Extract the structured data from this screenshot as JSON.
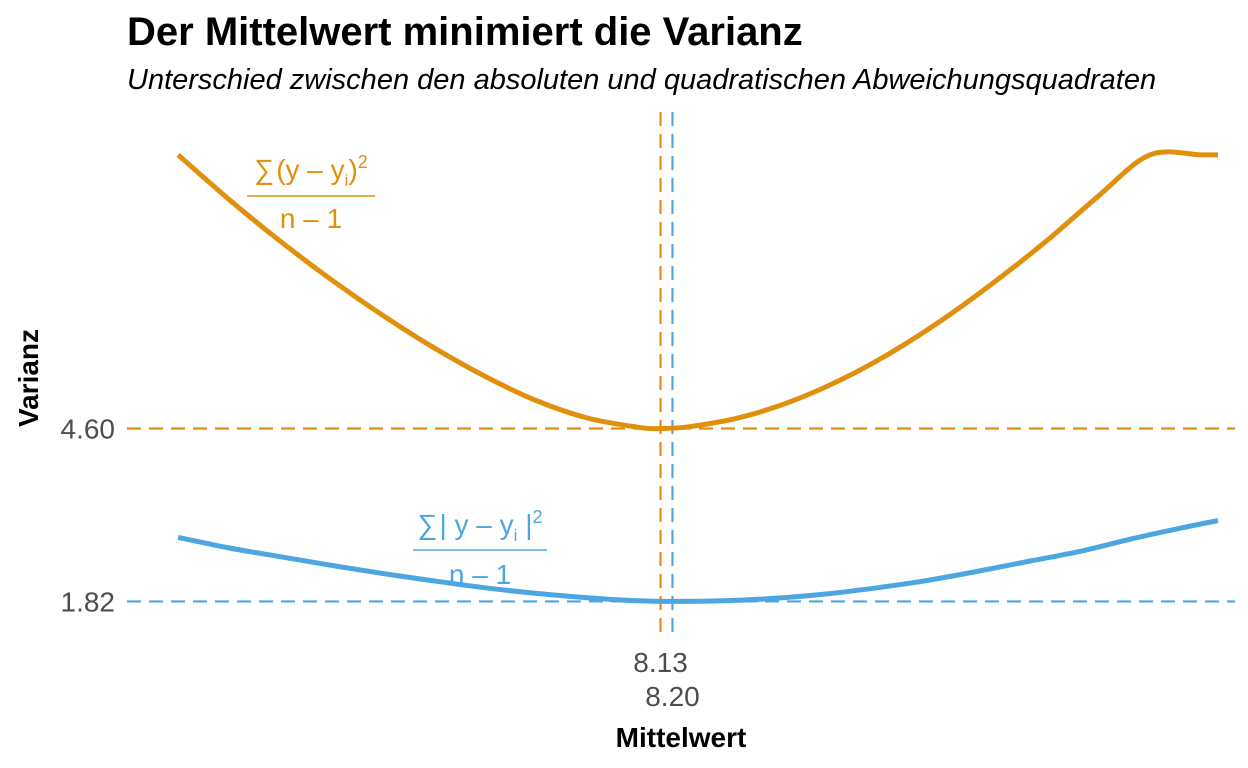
{
  "colors": {
    "quadratic": "#E0900C",
    "absolute": "#4EA6E0",
    "text": "#000000",
    "tick": "#4d4d4d"
  },
  "chart_data": {
    "type": "line",
    "title": "Der Mittelwert minimiert die Varianz",
    "subtitle": "Unterschied zwischen den absoluten und quadratischen Abweichungsquadraten",
    "xlabel": "Mittelwert",
    "ylabel": "Varianz",
    "xlim": [
      5.0,
      11.5
    ],
    "ylim": [
      1.2,
      9.4
    ],
    "x_ticks": [
      8.13,
      8.2
    ],
    "x_tick_labels": [
      "8.13",
      "8.20"
    ],
    "y_ticks": [
      1.82,
      4.6
    ],
    "y_tick_labels": [
      "1.82",
      "4.60"
    ],
    "grid": false,
    "series": [
      {
        "key": "quadratic",
        "label": {
          "sum": "∑",
          "open": "(y – y",
          "sub": "i",
          "close": ")",
          "sup": "2",
          "denominator": "n – 1"
        },
        "x": [
          5.3,
          5.6,
          5.9,
          6.2,
          6.5,
          6.8,
          7.1,
          7.4,
          7.7,
          8.0,
          8.13,
          8.3,
          8.6,
          8.9,
          9.2,
          9.5,
          9.8,
          10.1,
          10.4,
          10.7,
          11.0,
          11.3,
          11.4
        ],
        "y": [
          9.0,
          8.28,
          7.61,
          6.99,
          6.42,
          5.9,
          5.44,
          5.05,
          4.77,
          4.62,
          4.6,
          4.63,
          4.78,
          5.04,
          5.4,
          5.85,
          6.38,
          6.98,
          7.63,
          8.34,
          9.0,
          9.0,
          9.0
        ],
        "vline": 8.13,
        "hline": 4.6
      },
      {
        "key": "absolute",
        "label": {
          "sum": "∑",
          "open": "| y – y",
          "sub": "i",
          "close": " |",
          "sup": "2",
          "denominator": "n – 1"
        },
        "x": [
          5.3,
          5.6,
          5.9,
          6.2,
          6.5,
          6.8,
          7.1,
          7.4,
          7.7,
          8.0,
          8.2,
          8.5,
          8.8,
          9.1,
          9.4,
          9.7,
          10.0,
          10.3,
          10.6,
          10.9,
          11.2,
          11.4
        ],
        "y": [
          2.85,
          2.68,
          2.54,
          2.4,
          2.27,
          2.15,
          2.04,
          1.95,
          1.88,
          1.83,
          1.82,
          1.83,
          1.87,
          1.94,
          2.04,
          2.16,
          2.31,
          2.47,
          2.63,
          2.83,
          3.01,
          3.12
        ],
        "vline": 8.2,
        "hline": 1.82
      }
    ]
  }
}
